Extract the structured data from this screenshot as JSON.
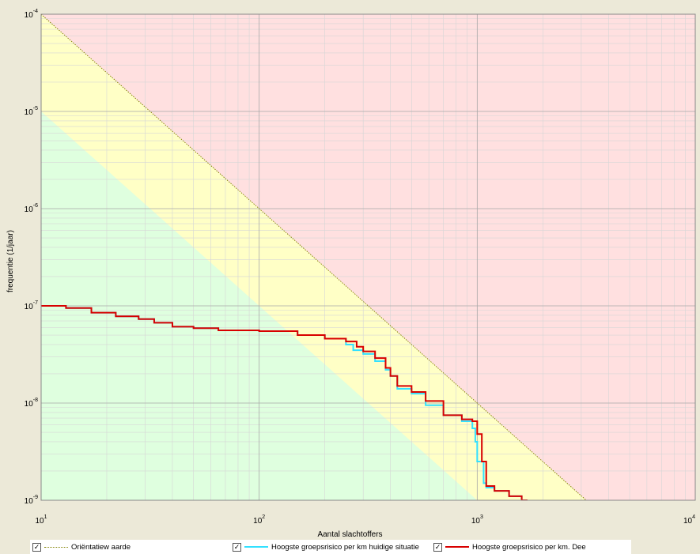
{
  "chart_data": {
    "type": "line",
    "xscale": "log",
    "yscale": "log",
    "xlim": [
      10,
      10000
    ],
    "ylim": [
      1e-09,
      0.0001
    ],
    "xlabel": "Aantal slachtoffers",
    "ylabel": "frequentie (1/jaar)",
    "x_ticks": [
      {
        "value": 10,
        "base": "10",
        "exp": "1"
      },
      {
        "value": 100,
        "base": "10",
        "exp": "2"
      },
      {
        "value": 1000,
        "base": "10",
        "exp": "3"
      },
      {
        "value": 10000,
        "base": "10",
        "exp": "4"
      }
    ],
    "y_ticks": [
      {
        "value": 0.0001,
        "base": "10",
        "exp": "-4"
      },
      {
        "value": 1e-05,
        "base": "10",
        "exp": "-5"
      },
      {
        "value": 1e-06,
        "base": "10",
        "exp": "-6"
      },
      {
        "value": 1e-07,
        "base": "10",
        "exp": "-7"
      },
      {
        "value": 1e-08,
        "base": "10",
        "exp": "-8"
      },
      {
        "value": 1e-09,
        "base": "10",
        "exp": "-9"
      }
    ],
    "grid": true,
    "regions": [
      {
        "boundary_at_x10": 1e-05,
        "color": "#dfffdf"
      },
      {
        "boundary_at_x10": 0.0001,
        "color": "#ffffc6"
      },
      {
        "boundary_at_x10": null,
        "color": "#ffe0e0"
      }
    ],
    "series": [
      {
        "name": "Oriëntatiew aarde",
        "color": "#808000",
        "style": "dotted",
        "x": [
          10,
          3162
        ],
        "y": [
          0.0001,
          1e-09
        ]
      },
      {
        "name": "Hoogste groepsrisico per km huidige situatie",
        "color": "#33e0ff",
        "style": "step",
        "x": [
          10,
          13,
          17,
          22,
          28,
          33,
          40,
          50,
          65,
          100,
          150,
          200,
          250,
          270,
          300,
          340,
          380,
          400,
          430,
          500,
          580,
          700,
          850,
          950,
          980,
          1000,
          1070,
          1100,
          1200,
          1400,
          1600,
          1700
        ],
        "y": [
          1e-07,
          9.5e-08,
          8.5e-08,
          7.8e-08,
          7.3e-08,
          6.7e-08,
          6.1e-08,
          5.9e-08,
          5.6e-08,
          5.5e-08,
          5e-08,
          4.6e-08,
          4e-08,
          3.5e-08,
          3.2e-08,
          2.7e-08,
          2.2e-08,
          1.9e-08,
          1.4e-08,
          1.25e-08,
          9.5e-09,
          7.5e-09,
          6.5e-09,
          5.5e-09,
          4e-09,
          2.5e-09,
          1.5e-09,
          1.35e-09,
          1.25e-09,
          1.1e-09,
          1e-09,
          1e-09
        ]
      },
      {
        "name": "Hoogste groepsrisico per km. Dee",
        "color": "#d80000",
        "style": "step",
        "x": [
          10,
          13,
          17,
          22,
          28,
          33,
          40,
          50,
          65,
          100,
          150,
          200,
          250,
          280,
          300,
          340,
          380,
          400,
          430,
          500,
          580,
          700,
          850,
          950,
          1000,
          1050,
          1100,
          1200,
          1400,
          1600,
          1700
        ],
        "y": [
          1e-07,
          9.5e-08,
          8.5e-08,
          7.8e-08,
          7.3e-08,
          6.7e-08,
          6.1e-08,
          5.9e-08,
          5.6e-08,
          5.5e-08,
          5e-08,
          4.6e-08,
          4.3e-08,
          3.8e-08,
          3.4e-08,
          2.9e-08,
          2.3e-08,
          1.9e-08,
          1.5e-08,
          1.3e-08,
          1.05e-08,
          7.5e-09,
          6.8e-09,
          6.5e-09,
          4.8e-09,
          2.5e-09,
          1.4e-09,
          1.25e-09,
          1.1e-09,
          1e-09,
          1e-09
        ]
      }
    ]
  },
  "legend": [
    {
      "label": "Oriëntatiew aarde",
      "checked": "✓"
    },
    {
      "label": "Hoogste groepsrisico per km huidige situatie",
      "checked": "✓"
    },
    {
      "label": "Hoogste groepsrisico per km. Dee",
      "checked": "✓"
    }
  ]
}
